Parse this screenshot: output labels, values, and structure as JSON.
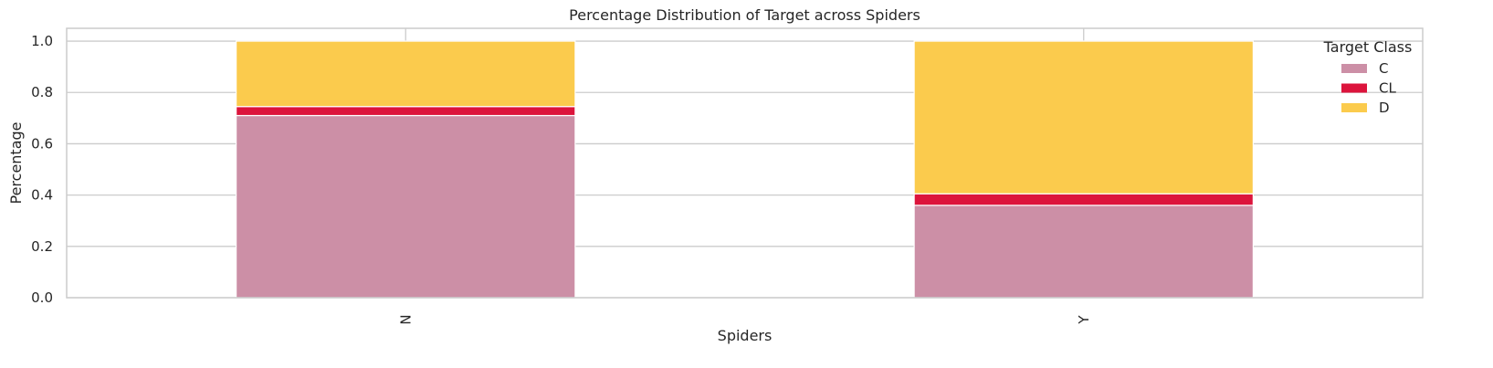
{
  "chart_data": {
    "type": "bar",
    "stacked": true,
    "title": "Percentage Distribution of Target across Spiders",
    "xlabel": "Spiders",
    "ylabel": "Percentage",
    "categories": [
      "N",
      "Y"
    ],
    "series": [
      {
        "name": "C",
        "values": [
          0.71,
          0.36
        ],
        "color": "#cc8fa6"
      },
      {
        "name": "CL",
        "values": [
          0.035,
          0.045
        ],
        "color": "#dc143c"
      },
      {
        "name": "D",
        "values": [
          0.255,
          0.595
        ],
        "color": "#fbcb4d"
      }
    ],
    "ylim": [
      0,
      1.05
    ],
    "yticks": [
      "0.0",
      "0.2",
      "0.4",
      "0.6",
      "0.8",
      "1.0"
    ],
    "grid": true,
    "legend": {
      "title": "Target Class",
      "placement": "top-right"
    }
  }
}
